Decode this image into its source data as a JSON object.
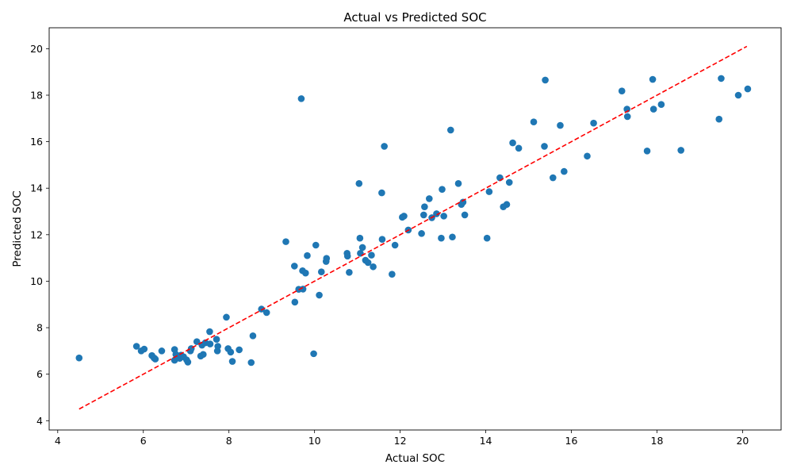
{
  "chart_data": {
    "type": "scatter",
    "title": "Actual vs Predicted SOC",
    "xlabel": "Actual SOC",
    "ylabel": "Predicted SOC",
    "xlim": [
      3.8,
      20.9
    ],
    "ylim": [
      3.6,
      20.9
    ],
    "xticks": [
      "4",
      "6",
      "8",
      "10",
      "12",
      "14",
      "16",
      "18",
      "20"
    ],
    "yticks": [
      "4",
      "6",
      "8",
      "10",
      "12",
      "14",
      "16",
      "18",
      "20"
    ],
    "grid": false,
    "point_color": "#1f77b4",
    "reference_line": {
      "style": "dashed",
      "color": "#ff0000",
      "from": [
        4.5,
        4.5
      ],
      "to": [
        20.1,
        20.1
      ]
    },
    "points": [
      [
        4.5,
        6.7
      ],
      [
        5.84,
        7.2
      ],
      [
        5.95,
        7.0
      ],
      [
        6.02,
        7.08
      ],
      [
        6.2,
        6.8
      ],
      [
        6.25,
        6.7
      ],
      [
        6.28,
        6.65
      ],
      [
        6.43,
        7.0
      ],
      [
        6.73,
        7.06
      ],
      [
        6.73,
        6.6
      ],
      [
        6.76,
        6.85
      ],
      [
        6.85,
        6.68
      ],
      [
        6.88,
        6.82
      ],
      [
        6.94,
        6.75
      ],
      [
        7.01,
        6.62
      ],
      [
        7.04,
        6.52
      ],
      [
        7.1,
        7.0
      ],
      [
        7.12,
        7.1
      ],
      [
        7.25,
        7.4
      ],
      [
        7.34,
        6.78
      ],
      [
        7.37,
        7.25
      ],
      [
        7.4,
        6.85
      ],
      [
        7.45,
        7.35
      ],
      [
        7.55,
        7.83
      ],
      [
        7.56,
        7.3
      ],
      [
        7.71,
        7.5
      ],
      [
        7.73,
        7.0
      ],
      [
        7.74,
        7.2
      ],
      [
        7.94,
        8.45
      ],
      [
        7.98,
        7.1
      ],
      [
        8.04,
        6.95
      ],
      [
        8.08,
        6.55
      ],
      [
        8.24,
        7.05
      ],
      [
        8.52,
        6.5
      ],
      [
        8.56,
        7.65
      ],
      [
        8.76,
        8.8
      ],
      [
        8.88,
        8.65
      ],
      [
        9.33,
        11.7
      ],
      [
        9.53,
        10.65
      ],
      [
        9.54,
        9.1
      ],
      [
        9.63,
        9.65
      ],
      [
        9.69,
        17.85
      ],
      [
        9.72,
        10.45
      ],
      [
        9.73,
        9.66
      ],
      [
        9.79,
        10.35
      ],
      [
        9.83,
        11.1
      ],
      [
        9.98,
        6.88
      ],
      [
        10.03,
        11.55
      ],
      [
        10.11,
        9.4
      ],
      [
        10.16,
        10.4
      ],
      [
        10.27,
        10.85
      ],
      [
        10.28,
        10.98
      ],
      [
        10.76,
        11.2
      ],
      [
        10.77,
        11.08
      ],
      [
        10.81,
        10.38
      ],
      [
        11.04,
        14.2
      ],
      [
        11.06,
        11.85
      ],
      [
        11.07,
        11.2
      ],
      [
        11.12,
        11.45
      ],
      [
        11.19,
        10.9
      ],
      [
        11.25,
        10.8
      ],
      [
        11.33,
        11.12
      ],
      [
        11.37,
        10.62
      ],
      [
        11.57,
        13.8
      ],
      [
        11.58,
        11.8
      ],
      [
        11.63,
        15.8
      ],
      [
        11.81,
        10.3
      ],
      [
        11.88,
        11.55
      ],
      [
        12.05,
        12.75
      ],
      [
        12.09,
        12.8
      ],
      [
        12.19,
        12.2
      ],
      [
        12.5,
        12.05
      ],
      [
        12.55,
        12.85
      ],
      [
        12.57,
        13.2
      ],
      [
        12.68,
        13.55
      ],
      [
        12.74,
        12.73
      ],
      [
        12.85,
        12.9
      ],
      [
        12.96,
        11.85
      ],
      [
        12.98,
        13.95
      ],
      [
        13.02,
        12.8
      ],
      [
        13.18,
        16.5
      ],
      [
        13.22,
        11.9
      ],
      [
        13.36,
        14.2
      ],
      [
        13.43,
        13.3
      ],
      [
        13.47,
        13.4
      ],
      [
        13.51,
        12.85
      ],
      [
        14.03,
        11.85
      ],
      [
        14.08,
        13.85
      ],
      [
        14.33,
        14.45
      ],
      [
        14.41,
        13.2
      ],
      [
        14.49,
        13.3
      ],
      [
        14.55,
        14.25
      ],
      [
        14.63,
        15.95
      ],
      [
        14.77,
        15.72
      ],
      [
        15.12,
        16.85
      ],
      [
        15.37,
        15.8
      ],
      [
        15.39,
        18.65
      ],
      [
        15.57,
        14.45
      ],
      [
        15.74,
        16.7
      ],
      [
        15.83,
        14.72
      ],
      [
        16.37,
        15.38
      ],
      [
        16.52,
        16.8
      ],
      [
        17.18,
        18.18
      ],
      [
        17.3,
        17.4
      ],
      [
        17.31,
        17.08
      ],
      [
        17.77,
        15.6
      ],
      [
        17.9,
        18.68
      ],
      [
        17.92,
        17.4
      ],
      [
        18.1,
        17.6
      ],
      [
        18.56,
        15.63
      ],
      [
        19.45,
        16.97
      ],
      [
        19.5,
        18.72
      ],
      [
        19.9,
        18.0
      ],
      [
        20.12,
        18.27
      ]
    ]
  }
}
